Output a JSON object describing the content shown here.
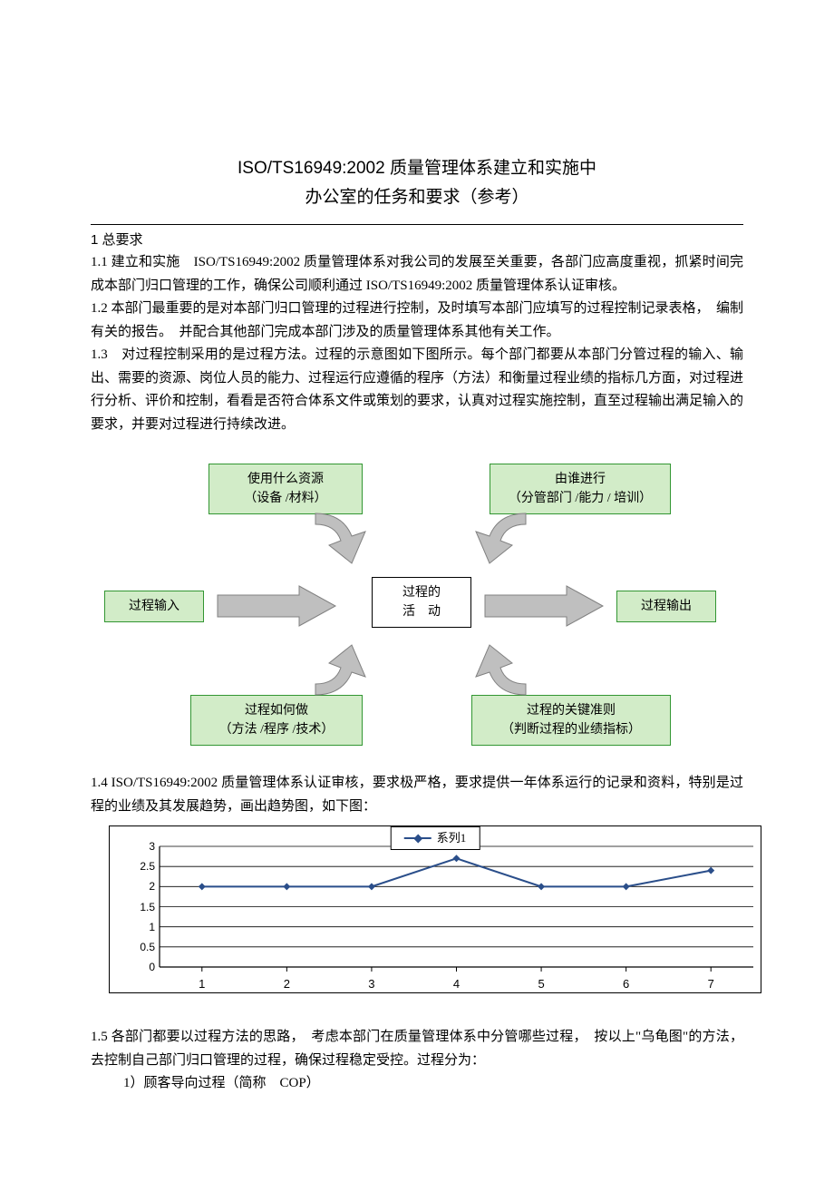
{
  "title": {
    "line1": "ISO/TS16949:2002 质量管理体系建立和实施中",
    "line2": "办公室的任务和要求（参考）"
  },
  "section1_header": "1 总要求",
  "p1_1": "1.1 建立和实施　ISO/TS16949:2002 质量管理体系对我公司的发展至关重要，各部门应高度重视，抓紧时间完成本部门归口管理的工作，确保公司顺利通过 ISO/TS16949:2002 质量管理体系认证审核。",
  "p1_2": "1.2 本部门最重要的是对本部门归口管理的过程进行控制，及时填写本部门应填写的过程控制记录表格，　编制有关的报告。　并配合其他部门完成本部门涉及的质量管理体系其他有关工作。",
  "p1_3": "1.3　对过程控制采用的是过程方法。过程的示意图如下图所示。每个部门都要从本部门分管过程的输入、输出、需要的资源、岗位人员的能力、过程运行应遵循的程序（方法）和衡量过程业绩的指标几方面，对过程进行分析、评价和控制，看看是否符合体系文件或策划的要求，认真对过程实施控制，直至过程输出满足输入的要求，并要对过程进行持续改进。",
  "turtle": {
    "top_left_l1": "使用什么资源",
    "top_left_l2": "（设备 /材料）",
    "top_right_l1": "由谁进行",
    "top_right_l2": "（分管部门 /能力 / 培训）",
    "left": "过程输入",
    "center_l1": "过程的",
    "center_l2": "活　动",
    "right": "过程输出",
    "bot_left_l1": "过程如何做",
    "bot_left_l2": "（方法 /程序 /技术）",
    "bot_right_l1": "过程的关键准则",
    "bot_right_l2": "（判断过程的业绩指标）",
    "box_fill": "#d2ecc8",
    "box_border": "#329632",
    "arrow_fill": "#bfbfbf",
    "arrow_stroke": "#808080"
  },
  "p1_4": "1.4 ISO/TS16949:2002 质量管理体系认证审核，要求极严格，要求提供一年体系运行的记录和资料，特别是过程的业绩及其发展趋势，画出趋势图，如下图：",
  "chart": {
    "type": "line",
    "legend_label": "系列1",
    "x_values": [
      1,
      2,
      3,
      4,
      5,
      6,
      7
    ],
    "y_values": [
      2,
      2,
      2,
      2.7,
      2,
      2,
      2.4
    ],
    "y_ticks": [
      0,
      0.5,
      1,
      1.5,
      2,
      2.5,
      3
    ],
    "ylim": [
      0,
      3
    ],
    "line_color": "#2a4e8a",
    "grid_color": "#000000",
    "background": "#ffffff",
    "marker": "diamond",
    "marker_size": 8,
    "line_width": 2
  },
  "p1_5": "1.5 各部门都要以过程方法的思路，　考虑本部门在质量管理体系中分管哪些过程，　按以上\"乌龟图\"的方法，去控制自己部门归口管理的过程，确保过程稳定受控。过程分为：",
  "p1_5_sub1": "1）顾客导向过程（简称　COP）"
}
